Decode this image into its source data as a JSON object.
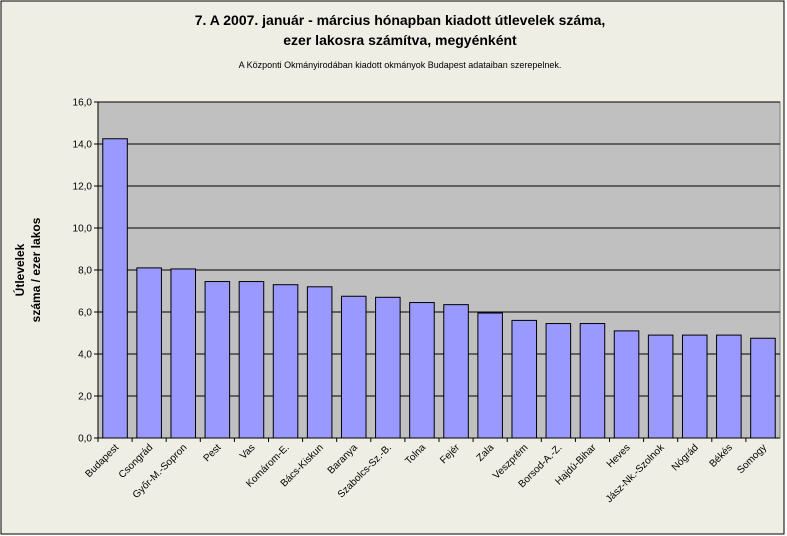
{
  "chart_data": {
    "type": "bar",
    "title": [
      "7. A 2007. január - március hónapban kiadott útlevelek száma,",
      "ezer lakosra számítva, megyénként"
    ],
    "subtitle": "A Központi Okmányirodában kiadott okmányok Budapest adataiban szerepelnek.",
    "ylabel": [
      "Útlevelek",
      "száma / ezer lakos"
    ],
    "categories": [
      "Budapest",
      "Csongrád",
      "Győr-M.-Sopron",
      "Pest",
      "Vas",
      "Komárom-E.",
      "Bács-Kiskun",
      "Baranya",
      "Szabolcs-Sz.-B.",
      "Tolna",
      "Fejér",
      "Zala",
      "Veszprém",
      "Borsod-A.-Z.",
      "Hajdú-Bihar",
      "Heves",
      "Jász-Nk.-Szolnok",
      "Nógrád",
      "Békés",
      "Somogy"
    ],
    "values": [
      14.25,
      8.1,
      8.05,
      7.45,
      7.45,
      7.3,
      7.2,
      6.75,
      6.7,
      6.45,
      6.35,
      5.95,
      5.6,
      5.45,
      5.45,
      5.1,
      4.9,
      4.9,
      4.9,
      4.75
    ],
    "color": "#9999ff",
    "ylim": [
      0,
      16
    ],
    "yticks": [
      {
        "value": 0,
        "label": "0,0"
      },
      {
        "value": 2,
        "label": "2,0"
      },
      {
        "value": 4,
        "label": "4,0"
      },
      {
        "value": 6,
        "label": "6,0"
      },
      {
        "value": 8,
        "label": "8,0"
      },
      {
        "value": 10,
        "label": "10,0"
      },
      {
        "value": 12,
        "label": "12,0"
      },
      {
        "value": 14,
        "label": "14,0"
      },
      {
        "value": 16,
        "label": "16,0"
      }
    ],
    "grid": true
  }
}
